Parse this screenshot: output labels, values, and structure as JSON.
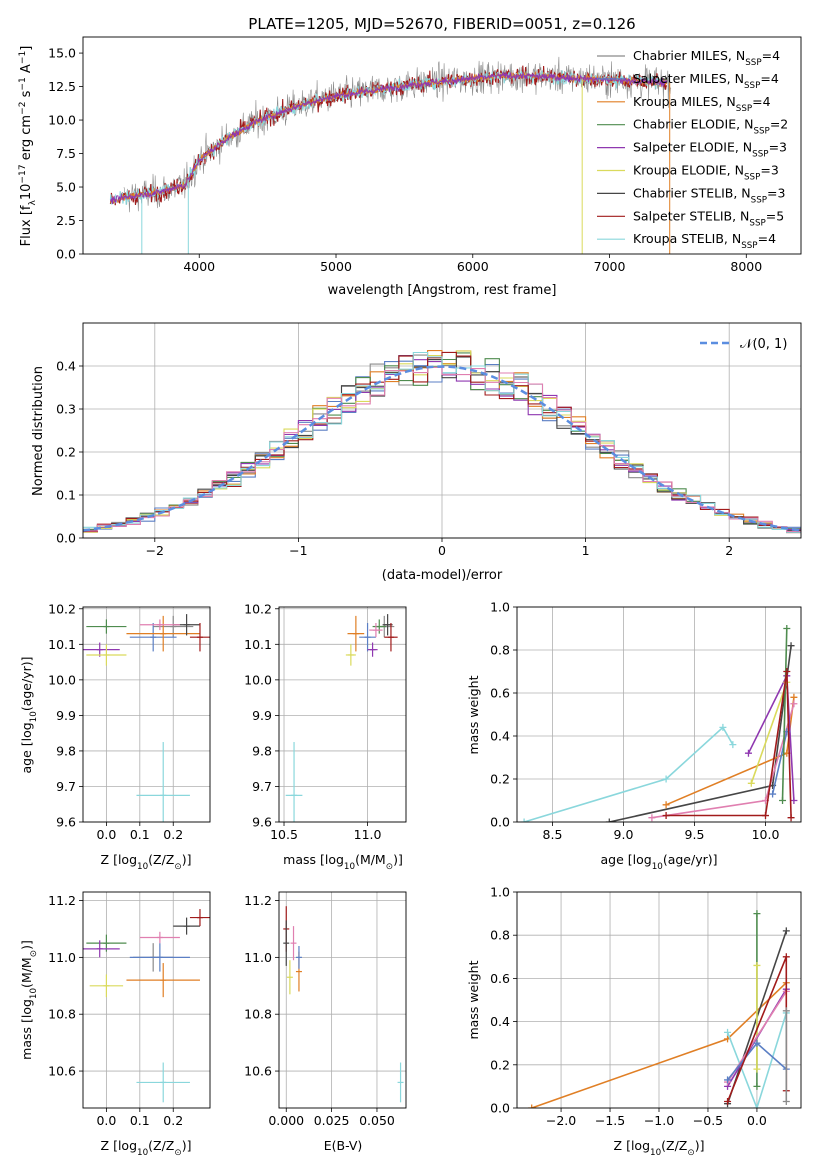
{
  "figure": {
    "title": "PLATE=1205, MJD=52670, FIBERID=0051, z=0.126"
  },
  "colors": {
    "Chabrier MILES": "#8b8b8b",
    "Salpeter MILES": "#5b7fc4",
    "Kroupa MILES": "#e07f25",
    "Chabrier ELODIE": "#4f8c4f",
    "Salpeter ELODIE": "#8f38b0",
    "Kroupa ELODIE": "#dada5c",
    "Chabrier STELIB": "#464646",
    "Salpeter STELIB": "#a11b1b",
    "Kroupa STELIB": "#8ad7dc",
    "pink": "#e07fb0",
    "gaussian": "#5b8ee0"
  },
  "chart_data": [
    {
      "id": "spectrum",
      "type": "line",
      "title": "PLATE=1205, MJD=52670, FIBERID=0051, z=0.126",
      "xlabel": "wavelength [Angstrom, rest frame]",
      "ylabel_parts": [
        "Flux [f",
        "λ",
        "10",
        "−17",
        " erg cm",
        "−2",
        " s",
        "−1",
        " A",
        "−1",
        "]"
      ],
      "xlim": [
        3150,
        8400
      ],
      "ylim": [
        0,
        16.2
      ],
      "xticks": [
        4000,
        5000,
        6000,
        7000,
        8000
      ],
      "yticks": [
        0.0,
        2.5,
        5.0,
        7.5,
        10.0,
        12.5,
        15.0
      ],
      "grid": false,
      "legend_position": "top-right",
      "legend": [
        {
          "name": "Chabrier MILES",
          "nssp": "4"
        },
        {
          "name": "Salpeter MILES",
          "nssp": "4"
        },
        {
          "name": "Kroupa MILES",
          "nssp": "4"
        },
        {
          "name": "Chabrier ELODIE",
          "nssp": "2"
        },
        {
          "name": "Salpeter ELODIE",
          "nssp": "3"
        },
        {
          "name": "Kroupa ELODIE",
          "nssp": "3"
        },
        {
          "name": "Chabrier STELIB",
          "nssp": "3"
        },
        {
          "name": "Salpeter STELIB",
          "nssp": "5"
        },
        {
          "name": "Kroupa STELIB",
          "nssp": "4"
        }
      ],
      "continuum": {
        "x": [
          3350,
          3500,
          3700,
          3900,
          4000,
          4200,
          4400,
          4600,
          4800,
          5000,
          5200,
          5400,
          5600,
          5800,
          6000,
          6200,
          6400,
          6600,
          6800,
          7000,
          7200,
          7400
        ],
        "y": [
          4.0,
          4.3,
          4.6,
          5.2,
          7.0,
          8.6,
          9.8,
          10.6,
          11.3,
          11.8,
          12.1,
          12.4,
          12.7,
          12.9,
          13.1,
          13.3,
          13.3,
          13.2,
          13.1,
          13.0,
          12.9,
          12.8
        ]
      },
      "spikes": [
        {
          "x": 3580,
          "y": 0
        },
        {
          "x": 3920,
          "y": 0
        },
        {
          "x": 6800,
          "y": 0
        },
        {
          "x": 7440,
          "y": 0
        }
      ]
    },
    {
      "id": "residuals",
      "type": "line",
      "xlabel": "(data-model)/error",
      "ylabel": "Normed distribution",
      "xlim": [
        -2.5,
        2.5
      ],
      "ylim": [
        0,
        0.5
      ],
      "xticks": [
        -2,
        -1,
        0,
        1,
        2
      ],
      "yticks": [
        0.0,
        0.1,
        0.2,
        0.3,
        0.4
      ],
      "grid": true,
      "legend_position": "top-right",
      "legend": [
        {
          "name": "𝒩(0, 1)",
          "style": "dashed"
        }
      ],
      "bin_width": 0.1
    },
    {
      "id": "age_vs_Z",
      "type": "scatter",
      "xlabel_parts": [
        "Z [log",
        "10",
        "(Z/Z",
        "⊙",
        ")]"
      ],
      "ylabel_parts": [
        "age  [log",
        "10",
        "(age/yr)]"
      ],
      "xlim": [
        -0.07,
        0.31
      ],
      "ylim": [
        9.6,
        10.205
      ],
      "xticks": [
        0.0,
        0.1,
        0.2
      ],
      "yticks": [
        9.6,
        9.7,
        9.8,
        9.9,
        10.0,
        10.1,
        10.2
      ],
      "grid": true,
      "points": [
        {
          "series": "Chabrier MILES",
          "x": 0.2,
          "y": 10.15,
          "xerr": 0.06,
          "yerr": 0.03
        },
        {
          "series": "Salpeter MILES",
          "x": 0.14,
          "y": 10.12,
          "xerr": 0.07,
          "yerr": 0.04
        },
        {
          "series": "Kroupa MILES",
          "x": 0.17,
          "y": 10.13,
          "xerr": 0.11,
          "yerr": 0.05
        },
        {
          "series": "Chabrier ELODIE",
          "x": 0.0,
          "y": 10.15,
          "xerr": 0.06,
          "yerr": 0.02
        },
        {
          "series": "Salpeter ELODIE",
          "x": -0.02,
          "y": 10.085,
          "xerr": 0.06,
          "yerr": 0.02
        },
        {
          "series": "Kroupa ELODIE",
          "x": 0.0,
          "y": 10.07,
          "xerr": 0.06,
          "yerr": 0.03
        },
        {
          "series": "Chabrier STELIB",
          "x": 0.24,
          "y": 10.155,
          "xerr": 0.04,
          "yerr": 0.03
        },
        {
          "series": "Salpeter STELIB",
          "x": 0.28,
          "y": 10.12,
          "xerr": 0.03,
          "yerr": 0.04
        },
        {
          "series": "Kroupa STELIB",
          "x": 0.17,
          "y": 9.675,
          "xerr": 0.08,
          "yerr": 0.15
        },
        {
          "series": "pink",
          "x": 0.16,
          "y": 10.155,
          "xerr": 0.06,
          "yerr": 0.015
        }
      ]
    },
    {
      "id": "age_vs_mass",
      "type": "scatter",
      "xlabel_parts": [
        "mass [log",
        "10",
        "(M/M",
        "⊙",
        ")]"
      ],
      "xlim": [
        10.47,
        11.23
      ],
      "ylim": [
        9.6,
        10.205
      ],
      "xticks": [
        10.5,
        11.0
      ],
      "yticks": [
        9.6,
        9.7,
        9.8,
        9.9,
        10.0,
        10.1,
        10.2
      ],
      "grid": true,
      "points": [
        {
          "series": "Chabrier MILES",
          "x": 11.1,
          "y": 10.15,
          "xerr": 0.06,
          "yerr": 0.03
        },
        {
          "series": "Salpeter MILES",
          "x": 11.0,
          "y": 10.12,
          "xerr": 0.05,
          "yerr": 0.04
        },
        {
          "series": "Kroupa MILES",
          "x": 10.93,
          "y": 10.13,
          "xerr": 0.05,
          "yerr": 0.05
        },
        {
          "series": "Chabrier ELODIE",
          "x": 11.07,
          "y": 10.15,
          "xerr": 0.04,
          "yerr": 0.02
        },
        {
          "series": "Salpeter ELODIE",
          "x": 11.03,
          "y": 10.085,
          "xerr": 0.03,
          "yerr": 0.02
        },
        {
          "series": "Kroupa ELODIE",
          "x": 10.9,
          "y": 10.07,
          "xerr": 0.03,
          "yerr": 0.03
        },
        {
          "series": "Chabrier STELIB",
          "x": 11.12,
          "y": 10.155,
          "xerr": 0.03,
          "yerr": 0.03
        },
        {
          "series": "Salpeter STELIB",
          "x": 11.14,
          "y": 10.12,
          "xerr": 0.04,
          "yerr": 0.04
        },
        {
          "series": "Kroupa STELIB",
          "x": 10.56,
          "y": 9.675,
          "xerr": 0.05,
          "yerr": 0.15
        },
        {
          "series": "pink",
          "x": 11.05,
          "y": 10.14,
          "xerr": 0.04,
          "yerr": 0.02
        }
      ]
    },
    {
      "id": "weight_vs_age",
      "type": "line",
      "xlabel_parts": [
        "age  [log",
        "10",
        "(age/yr)]"
      ],
      "ylabel": "mass weight",
      "xlim": [
        8.25,
        10.25
      ],
      "ylim": [
        0,
        1.0
      ],
      "xticks": [
        8.5,
        9.0,
        9.5,
        10.0
      ],
      "yticks": [
        0.0,
        0.2,
        0.4,
        0.6,
        0.8,
        1.0
      ],
      "grid": true,
      "series": [
        {
          "name": "Kroupa STELIB",
          "x": [
            8.3,
            9.3,
            9.7,
            9.77
          ],
          "y": [
            0.0,
            0.2,
            0.44,
            0.36
          ]
        },
        {
          "name": "Chabrier STELIB",
          "x": [
            8.9,
            10.05,
            10.18
          ],
          "y": [
            0.0,
            0.17,
            0.82
          ]
        },
        {
          "name": "Kroupa MILES",
          "x": [
            9.3,
            10.15,
            10.2
          ],
          "y": [
            0.08,
            0.32,
            0.58
          ]
        },
        {
          "name": "pink",
          "x": [
            9.2,
            10.0,
            10.2
          ],
          "y": [
            0.02,
            0.1,
            0.55
          ]
        },
        {
          "name": "Salpeter ELODIE",
          "x": [
            9.88,
            10.15,
            10.2
          ],
          "y": [
            0.32,
            0.68,
            0.1
          ]
        },
        {
          "name": "Kroupa ELODIE",
          "x": [
            9.9,
            10.15
          ],
          "y": [
            0.18,
            0.65
          ]
        },
        {
          "name": "Salpeter MILES",
          "x": [
            10.05,
            10.15
          ],
          "y": [
            0.13,
            0.42
          ]
        },
        {
          "name": "Chabrier ELODIE",
          "x": [
            10.12,
            10.15
          ],
          "y": [
            0.1,
            0.9
          ]
        },
        {
          "name": "Salpeter STELIB",
          "x": [
            9.3,
            10.0,
            10.15,
            10.18
          ],
          "y": [
            0.03,
            0.03,
            0.7,
            0.02
          ]
        }
      ]
    },
    {
      "id": "mass_vs_Z",
      "type": "scatter",
      "xlabel_parts": [
        "Z [log",
        "10",
        "(Z/Z",
        "⊙",
        ")]"
      ],
      "ylabel_parts": [
        "mass [log",
        "10",
        "(M/M",
        "⊙",
        ")]"
      ],
      "xlim": [
        -0.07,
        0.31
      ],
      "ylim": [
        10.47,
        11.23
      ],
      "xticks": [
        0.0,
        0.1,
        0.2
      ],
      "yticks": [
        10.6,
        10.8,
        11.0,
        11.2
      ],
      "grid": true,
      "points": [
        {
          "series": "Chabrier MILES",
          "x": 0.14,
          "y": 11.0,
          "xerr": 0.06,
          "yerr": 0.05
        },
        {
          "series": "Salpeter MILES",
          "x": 0.16,
          "y": 11.0,
          "xerr": 0.09,
          "yerr": 0.05
        },
        {
          "series": "Kroupa MILES",
          "x": 0.17,
          "y": 10.92,
          "xerr": 0.11,
          "yerr": 0.06
        },
        {
          "series": "Chabrier ELODIE",
          "x": 0.0,
          "y": 11.05,
          "xerr": 0.06,
          "yerr": 0.03
        },
        {
          "series": "Salpeter ELODIE",
          "x": -0.02,
          "y": 11.03,
          "xerr": 0.06,
          "yerr": 0.03
        },
        {
          "series": "Kroupa ELODIE",
          "x": 0.0,
          "y": 10.9,
          "xerr": 0.05,
          "yerr": 0.04
        },
        {
          "series": "Chabrier STELIB",
          "x": 0.24,
          "y": 11.11,
          "xerr": 0.04,
          "yerr": 0.03
        },
        {
          "series": "Salpeter STELIB",
          "x": 0.28,
          "y": 11.14,
          "xerr": 0.03,
          "yerr": 0.03
        },
        {
          "series": "Kroupa STELIB",
          "x": 0.17,
          "y": 10.56,
          "xerr": 0.08,
          "yerr": 0.07
        },
        {
          "series": "pink",
          "x": 0.16,
          "y": 11.07,
          "xerr": 0.06,
          "yerr": 0.02
        }
      ]
    },
    {
      "id": "mass_vs_ebv",
      "type": "scatter",
      "xlabel": "E(B-V)",
      "xlim": [
        -0.004,
        0.066
      ],
      "ylim": [
        10.47,
        11.23
      ],
      "xticks": [
        0.0,
        0.025,
        0.05
      ],
      "yticks": [
        10.6,
        10.8,
        11.0,
        11.2
      ],
      "grid": true,
      "points": [
        {
          "series": "Salpeter STELIB",
          "x": 0.0,
          "y": 11.1,
          "xerr": 0.0,
          "yerr": 0.08
        },
        {
          "series": "Chabrier STELIB",
          "x": 0.0,
          "y": 11.05,
          "xerr": 0.0,
          "yerr": 0.08
        },
        {
          "series": "Kroupa ELODIE",
          "x": 0.002,
          "y": 10.93,
          "xerr": 0.0,
          "yerr": 0.06
        },
        {
          "series": "pink",
          "x": 0.004,
          "y": 11.05,
          "xerr": 0.0,
          "yerr": 0.06
        },
        {
          "series": "Kroupa MILES",
          "x": 0.007,
          "y": 10.95,
          "xerr": 0.0,
          "yerr": 0.07
        },
        {
          "series": "Salpeter MILES",
          "x": 0.007,
          "y": 11.0,
          "xerr": 0.0,
          "yerr": 0.04
        },
        {
          "series": "Kroupa STELIB",
          "x": 0.063,
          "y": 10.56,
          "xerr": 0.0,
          "yerr": 0.07
        }
      ]
    },
    {
      "id": "weight_vs_Z",
      "type": "line",
      "xlabel_parts": [
        "Z [log",
        "10",
        "(Z/Z",
        "⊙",
        ")]"
      ],
      "ylabel": "mass weight",
      "xlim": [
        -2.45,
        0.45
      ],
      "ylim": [
        0,
        1.0
      ],
      "xticks": [
        -2.0,
        -1.5,
        -1.0,
        -0.5,
        0.0
      ],
      "yticks": [
        0.0,
        0.2,
        0.4,
        0.6,
        0.8,
        1.0
      ],
      "grid": true,
      "series": [
        {
          "name": "Kroupa MILES",
          "x": [
            -2.3,
            -0.3,
            0.3
          ],
          "y": [
            0.0,
            0.32,
            0.58
          ]
        },
        {
          "name": "Chabrier STELIB",
          "x": [
            -0.3,
            0.3
          ],
          "y": [
            0.02,
            0.82
          ]
        },
        {
          "name": "Kroupa STELIB",
          "x": [
            -0.3,
            0.0,
            0.3
          ],
          "y": [
            0.35,
            0.0,
            0.44
          ]
        },
        {
          "name": "Chabrier ELODIE",
          "x": [
            0.0,
            0.0
          ],
          "y": [
            0.1,
            0.9
          ]
        },
        {
          "name": "Kroupa ELODIE",
          "x": [
            0.0,
            0.0
          ],
          "y": [
            0.18,
            0.66
          ]
        },
        {
          "name": "Salpeter ELODIE",
          "x": [
            -0.3,
            0.3
          ],
          "y": [
            0.1,
            0.55
          ]
        },
        {
          "name": "pink",
          "x": [
            -0.3,
            0.3
          ],
          "y": [
            0.12,
            0.54
          ]
        },
        {
          "name": "Salpeter MILES",
          "x": [
            -0.3,
            0.0,
            0.3
          ],
          "y": [
            0.13,
            0.3,
            0.18
          ]
        },
        {
          "name": "Salpeter STELIB",
          "x": [
            -0.3,
            0.3,
            0.3
          ],
          "y": [
            0.03,
            0.7,
            0.08
          ]
        },
        {
          "name": "Chabrier MILES",
          "x": [
            0.3,
            0.3
          ],
          "y": [
            0.03,
            0.45
          ]
        }
      ]
    }
  ]
}
